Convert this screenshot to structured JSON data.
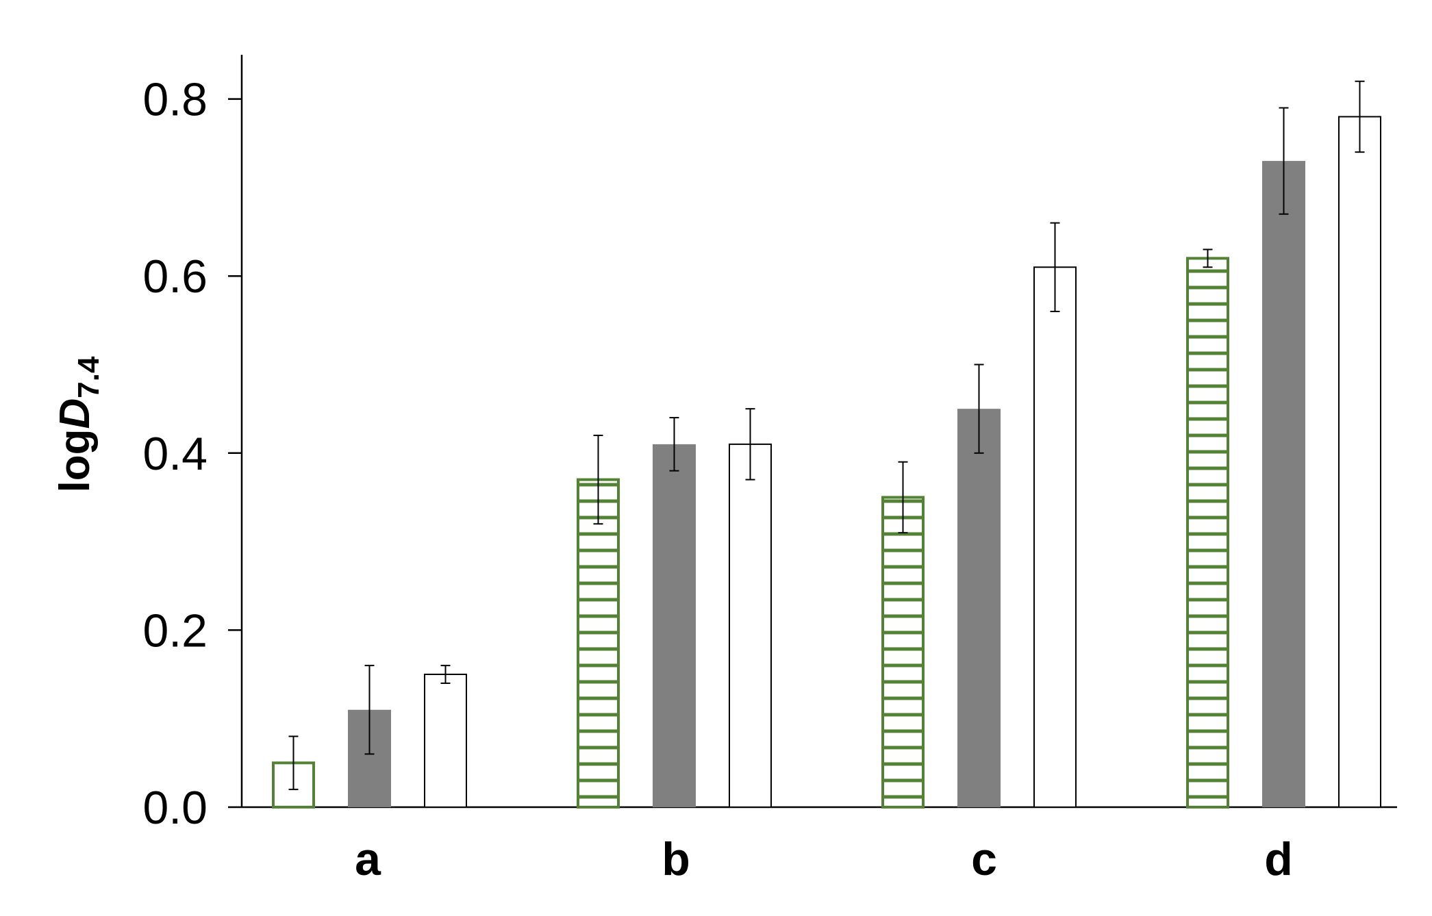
{
  "chart_data": {
    "type": "bar",
    "ylabel": {
      "base": "log",
      "italic": "D",
      "subscript": "7.4"
    },
    "ylim": [
      0,
      0.85
    ],
    "yticks": [
      "0.0",
      "0.2",
      "0.4",
      "0.6",
      "0.8"
    ],
    "categories": [
      "a",
      "b",
      "c",
      "d"
    ],
    "grid": false,
    "legend": "none",
    "series": [
      {
        "fill": "hatched-green",
        "color": "#548235",
        "values": [
          0.05,
          0.37,
          0.35,
          0.62
        ],
        "errors": [
          0.03,
          0.05,
          0.04,
          0.01
        ]
      },
      {
        "fill": "solid-gray",
        "color": "#808080",
        "values": [
          0.11,
          0.41,
          0.45,
          0.73
        ],
        "errors": [
          0.05,
          0.03,
          0.05,
          0.06
        ]
      },
      {
        "fill": "white",
        "color": "#000000",
        "values": [
          0.15,
          0.41,
          0.61,
          0.78
        ],
        "errors": [
          0.01,
          0.04,
          0.05,
          0.04
        ]
      }
    ]
  }
}
